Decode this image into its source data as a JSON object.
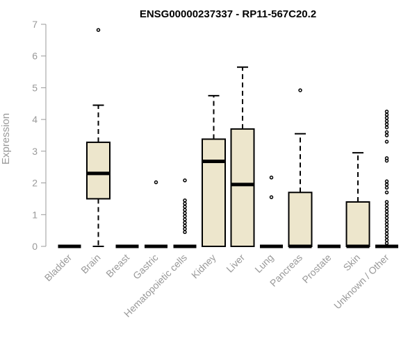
{
  "chart_data": {
    "type": "boxplot",
    "title": "ENSG00000237337 - RP11-567C20.2",
    "xlabel": "",
    "ylabel": "Expression",
    "ylim": [
      0,
      7
    ],
    "yticks": [
      0,
      1,
      2,
      3,
      4,
      5,
      6,
      7
    ],
    "box_fill": "#ede6cc",
    "categories": [
      "Bladder",
      "Brain",
      "Breast",
      "Gastric",
      "Hematopoietic cells",
      "Kidney",
      "Liver",
      "Lung",
      "Pancreas",
      "Prostate",
      "Skin",
      "Unknown / Other"
    ],
    "boxes": [
      {
        "q1": 0,
        "median": 0,
        "q3": 0,
        "whisker_low": 0,
        "whisker_high": 0,
        "outliers": []
      },
      {
        "q1": 1.5,
        "median": 2.3,
        "q3": 3.28,
        "whisker_low": 0,
        "whisker_high": 4.45,
        "outliers": [
          6.82
        ]
      },
      {
        "q1": 0,
        "median": 0,
        "q3": 0,
        "whisker_low": 0,
        "whisker_high": 0,
        "outliers": []
      },
      {
        "q1": 0,
        "median": 0,
        "q3": 0,
        "whisker_low": 0,
        "whisker_high": 0,
        "outliers": [
          2.02
        ]
      },
      {
        "q1": 0,
        "median": 0,
        "q3": 0,
        "whisker_low": 0,
        "whisker_high": 0,
        "outliers": [
          0.45,
          0.55,
          0.65,
          0.75,
          0.85,
          0.95,
          1.05,
          1.15,
          1.25,
          1.35,
          1.45,
          2.08
        ]
      },
      {
        "q1": 0,
        "median": 2.68,
        "q3": 3.38,
        "whisker_low": 0,
        "whisker_high": 4.75,
        "outliers": []
      },
      {
        "q1": 0,
        "median": 1.95,
        "q3": 3.7,
        "whisker_low": 0,
        "whisker_high": 5.65,
        "outliers": []
      },
      {
        "q1": 0,
        "median": 0,
        "q3": 0,
        "whisker_low": 0,
        "whisker_high": 0,
        "outliers": [
          1.55,
          2.17
        ]
      },
      {
        "q1": 0,
        "median": 0,
        "q3": 1.7,
        "whisker_low": 0,
        "whisker_high": 3.55,
        "outliers": [
          4.92
        ]
      },
      {
        "q1": 0,
        "median": 0,
        "q3": 0,
        "whisker_low": 0,
        "whisker_high": 0,
        "outliers": []
      },
      {
        "q1": 0,
        "median": 0,
        "q3": 1.4,
        "whisker_low": 0,
        "whisker_high": 2.95,
        "outliers": []
      },
      {
        "q1": 0,
        "median": 0,
        "q3": 0,
        "whisker_low": 0,
        "whisker_high": 0,
        "outliers": [
          0.1,
          0.2,
          0.3,
          0.4,
          0.5,
          0.6,
          0.7,
          0.8,
          0.9,
          1.0,
          1.1,
          1.2,
          1.3,
          1.4,
          1.7,
          1.85,
          1.95,
          2.05,
          2.7,
          2.78,
          3.3,
          3.5,
          3.6,
          3.75,
          3.85,
          3.95,
          4.05,
          4.15,
          4.25
        ]
      }
    ]
  }
}
